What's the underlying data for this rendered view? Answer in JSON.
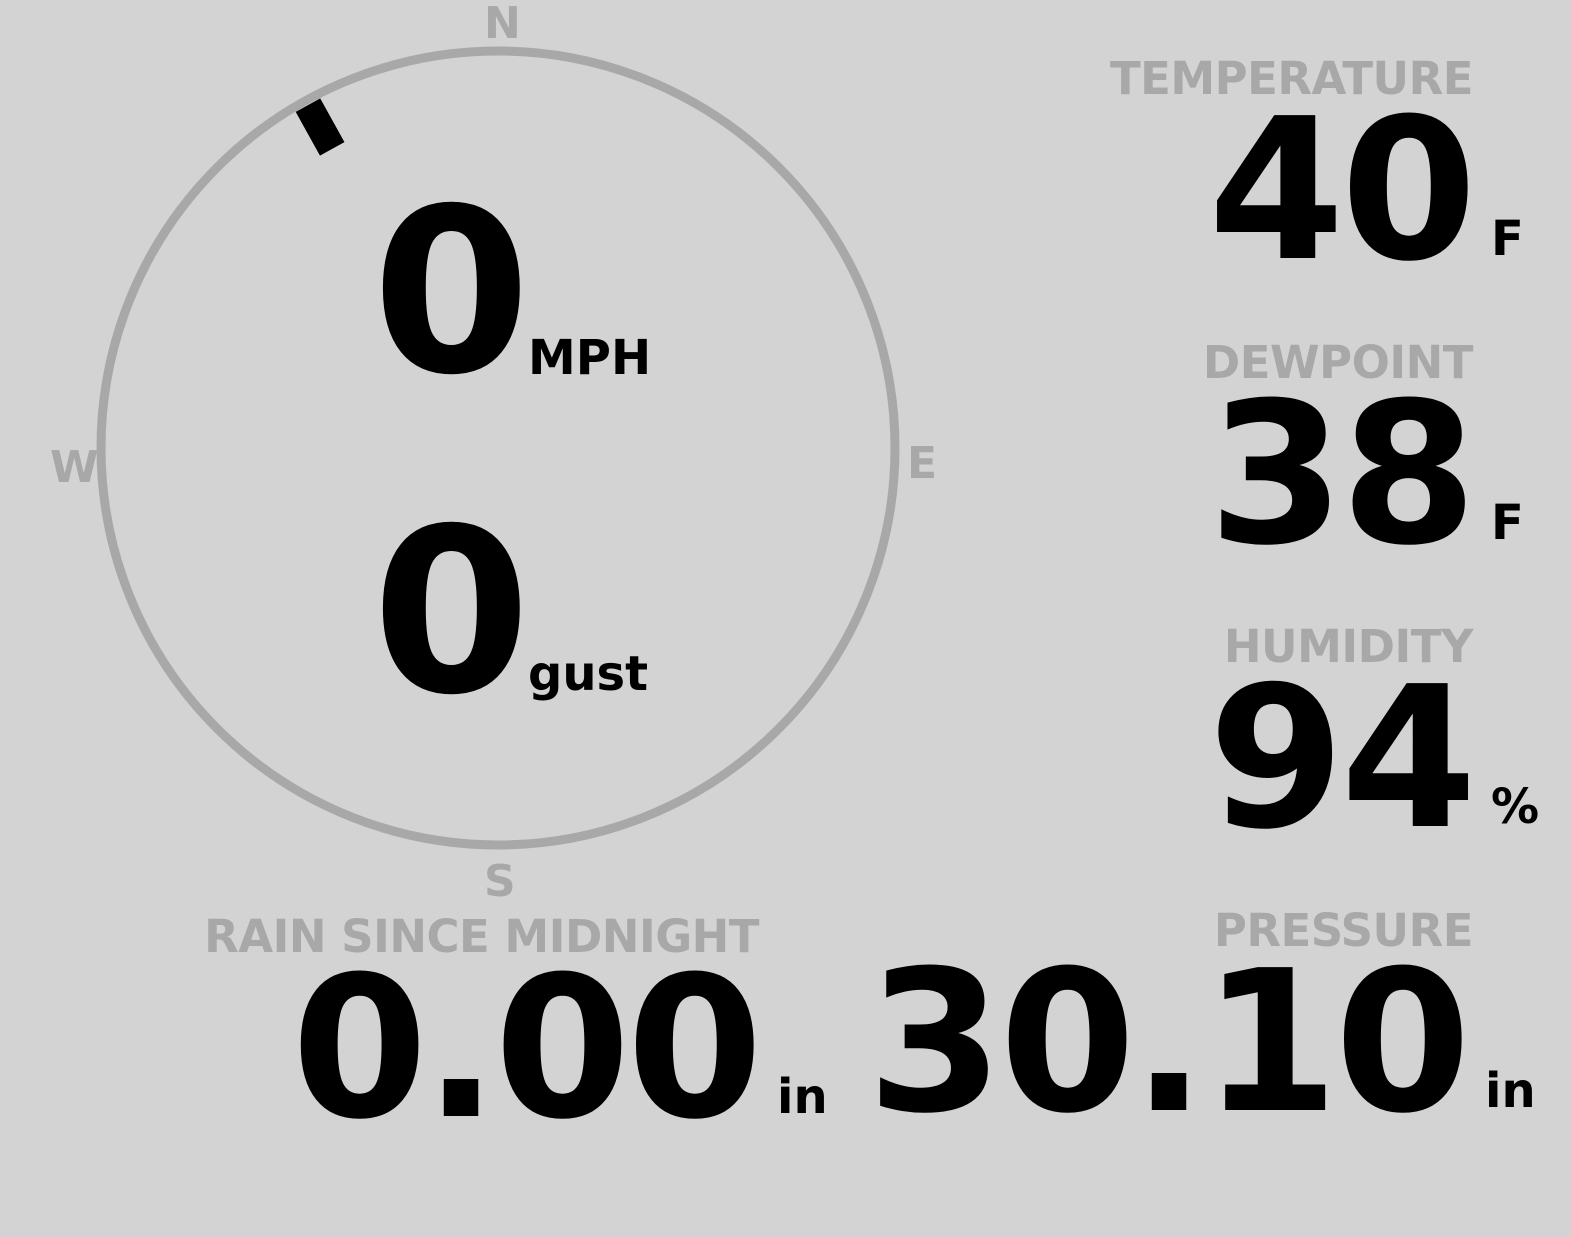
{
  "colors": {
    "background": "#d3d3d3",
    "label": "#a8a8a8",
    "value": "#000000",
    "ring": "#a8a8a8",
    "needle": "#000000"
  },
  "wind": {
    "compass": {
      "north": "N",
      "east": "E",
      "south": "S",
      "west": "W"
    },
    "direction_degrees": 331,
    "speed": "0",
    "speed_unit": "MPH",
    "gust": "0",
    "gust_unit": "gust"
  },
  "temperature": {
    "label": "TEMPERATURE",
    "value": "40",
    "unit": "F"
  },
  "dewpoint": {
    "label": "DEWPOINT",
    "value": "38",
    "unit": "F"
  },
  "humidity": {
    "label": "HUMIDITY",
    "value": "94",
    "unit": "%"
  },
  "rain": {
    "label": "RAIN SINCE MIDNIGHT",
    "value": "0.00",
    "unit": "in"
  },
  "pressure": {
    "label": "PRESSURE",
    "value": "30.10",
    "unit": "in"
  }
}
